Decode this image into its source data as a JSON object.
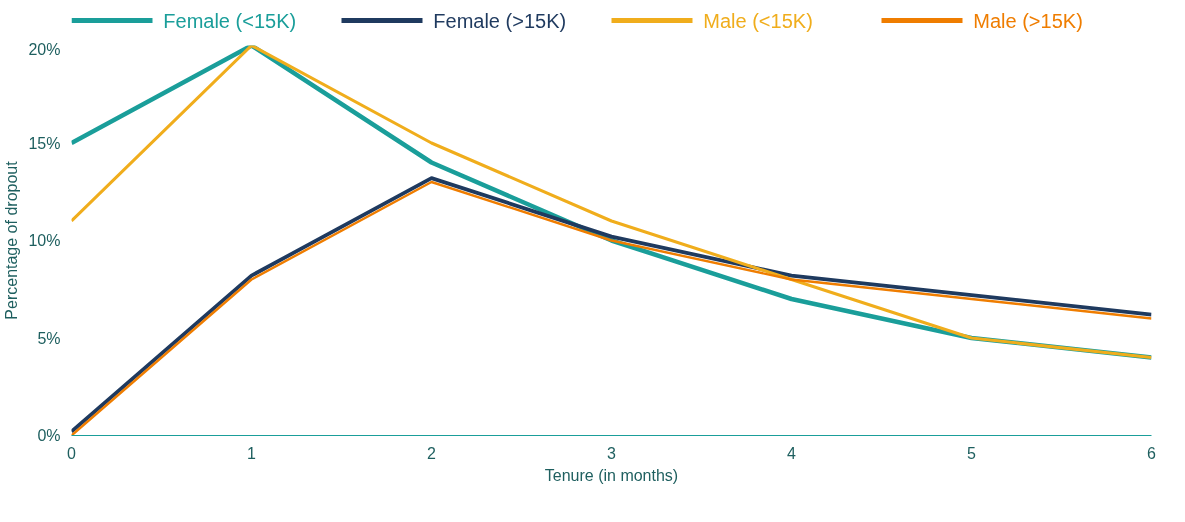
{
  "chart_data": {
    "type": "line",
    "xlabel": "Tenure (in months)",
    "ylabel": "Percentage of dropout",
    "x": [
      0,
      1,
      2,
      3,
      4,
      5,
      6
    ],
    "series": [
      {
        "name": "Female (<15K)",
        "color": "#1a9e9a",
        "values": [
          15,
          20,
          14,
          10,
          7,
          5,
          4
        ]
      },
      {
        "name": "Female (>15K)",
        "color": "#1f3a5f",
        "values": [
          0.2,
          8.2,
          13.2,
          10.2,
          8.2,
          7.2,
          6.2
        ]
      },
      {
        "name": "Male (<15K)",
        "color": "#f0ad1c",
        "values": [
          11,
          20,
          15,
          11,
          8,
          5,
          4
        ]
      },
      {
        "name": "Male (>15K)",
        "color": "#ef7d00",
        "values": [
          0,
          8,
          13,
          10,
          8,
          7,
          6
        ]
      }
    ],
    "xlim": [
      0,
      6
    ],
    "xticks": [
      0,
      1,
      2,
      3,
      4,
      5,
      6
    ],
    "ylim": [
      0,
      20
    ],
    "yticks": [
      {
        "value": 0,
        "label": "0%"
      },
      {
        "value": 5,
        "label": "5%"
      },
      {
        "value": 10,
        "label": "10%"
      },
      {
        "value": 15,
        "label": "15%"
      },
      {
        "value": 20,
        "label": "20%"
      }
    ],
    "grid": false,
    "legend": "top",
    "marker": "none",
    "line_style": "solid"
  }
}
